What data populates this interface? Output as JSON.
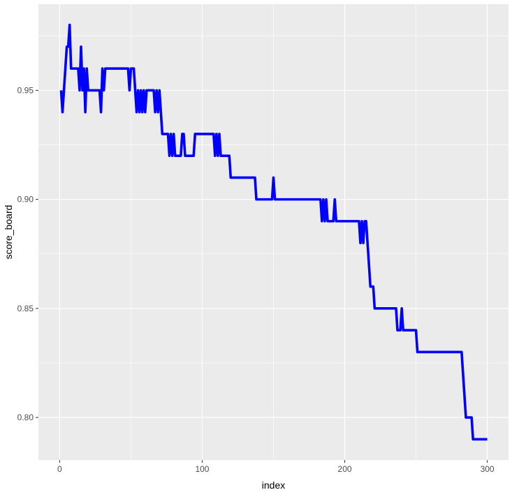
{
  "chart_data": {
    "type": "line",
    "xlabel": "index",
    "ylabel": "score_board",
    "xlim": [
      -14.9,
      314.9
    ],
    "ylim": [
      0.7805,
      0.9895
    ],
    "x_ticks": [
      0,
      100,
      200,
      300
    ],
    "x_tick_labels": [
      "0",
      "100",
      "200",
      "300"
    ],
    "y_ticks": [
      0.8,
      0.85,
      0.9,
      0.95
    ],
    "y_tick_labels": [
      "0.80",
      "0.85",
      "0.90",
      "0.95"
    ],
    "grid": true,
    "legend": "none",
    "series": [
      {
        "color": "#0000ff",
        "points": [
          [
            1,
            0.95
          ],
          [
            2,
            0.94
          ],
          [
            3,
            0.95
          ],
          [
            4,
            0.96
          ],
          [
            5,
            0.97
          ],
          [
            6,
            0.97
          ],
          [
            7,
            0.98
          ],
          [
            8,
            0.96
          ],
          [
            9,
            0.96
          ],
          [
            10,
            0.96
          ],
          [
            11,
            0.96
          ],
          [
            12,
            0.96
          ],
          [
            13,
            0.96
          ],
          [
            14,
            0.95
          ],
          [
            15,
            0.97
          ],
          [
            16,
            0.95
          ],
          [
            17,
            0.96
          ],
          [
            18,
            0.94
          ],
          [
            19,
            0.96
          ],
          [
            20,
            0.95
          ],
          [
            21,
            0.95
          ],
          [
            22,
            0.95
          ],
          [
            23,
            0.95
          ],
          [
            24,
            0.95
          ],
          [
            25,
            0.95
          ],
          [
            26,
            0.95
          ],
          [
            27,
            0.95
          ],
          [
            28,
            0.95
          ],
          [
            29,
            0.94
          ],
          [
            30,
            0.96
          ],
          [
            31,
            0.95
          ],
          [
            32,
            0.96
          ],
          [
            33,
            0.96
          ],
          [
            34,
            0.96
          ],
          [
            35,
            0.96
          ],
          [
            36,
            0.96
          ],
          [
            37,
            0.96
          ],
          [
            38,
            0.96
          ],
          [
            39,
            0.96
          ],
          [
            40,
            0.96
          ],
          [
            41,
            0.96
          ],
          [
            42,
            0.96
          ],
          [
            43,
            0.96
          ],
          [
            44,
            0.96
          ],
          [
            45,
            0.96
          ],
          [
            46,
            0.96
          ],
          [
            47,
            0.96
          ],
          [
            48,
            0.96
          ],
          [
            49,
            0.95
          ],
          [
            50,
            0.96
          ],
          [
            51,
            0.96
          ],
          [
            52,
            0.96
          ],
          [
            53,
            0.95
          ],
          [
            54,
            0.94
          ],
          [
            55,
            0.95
          ],
          [
            56,
            0.94
          ],
          [
            57,
            0.95
          ],
          [
            58,
            0.94
          ],
          [
            59,
            0.95
          ],
          [
            60,
            0.94
          ],
          [
            61,
            0.95
          ],
          [
            62,
            0.95
          ],
          [
            63,
            0.95
          ],
          [
            64,
            0.95
          ],
          [
            65,
            0.95
          ],
          [
            66,
            0.95
          ],
          [
            67,
            0.94
          ],
          [
            68,
            0.95
          ],
          [
            69,
            0.94
          ],
          [
            70,
            0.95
          ],
          [
            71,
            0.94
          ],
          [
            72,
            0.93
          ],
          [
            73,
            0.93
          ],
          [
            74,
            0.93
          ],
          [
            75,
            0.93
          ],
          [
            76,
            0.93
          ],
          [
            77,
            0.92
          ],
          [
            78,
            0.93
          ],
          [
            79,
            0.92
          ],
          [
            80,
            0.93
          ],
          [
            81,
            0.92
          ],
          [
            82,
            0.92
          ],
          [
            83,
            0.92
          ],
          [
            84,
            0.92
          ],
          [
            85,
            0.92
          ],
          [
            86,
            0.93
          ],
          [
            87,
            0.93
          ],
          [
            88,
            0.92
          ],
          [
            89,
            0.92
          ],
          [
            90,
            0.92
          ],
          [
            91,
            0.92
          ],
          [
            92,
            0.92
          ],
          [
            93,
            0.92
          ],
          [
            94,
            0.92
          ],
          [
            95,
            0.93
          ],
          [
            96,
            0.93
          ],
          [
            97,
            0.93
          ],
          [
            98,
            0.93
          ],
          [
            99,
            0.93
          ],
          [
            100,
            0.93
          ],
          [
            101,
            0.93
          ],
          [
            102,
            0.93
          ],
          [
            103,
            0.93
          ],
          [
            104,
            0.93
          ],
          [
            105,
            0.93
          ],
          [
            106,
            0.93
          ],
          [
            107,
            0.93
          ],
          [
            108,
            0.93
          ],
          [
            109,
            0.92
          ],
          [
            110,
            0.93
          ],
          [
            111,
            0.92
          ],
          [
            112,
            0.93
          ],
          [
            113,
            0.92
          ],
          [
            114,
            0.92
          ],
          [
            115,
            0.92
          ],
          [
            116,
            0.92
          ],
          [
            117,
            0.92
          ],
          [
            118,
            0.92
          ],
          [
            119,
            0.92
          ],
          [
            120,
            0.91
          ],
          [
            121,
            0.91
          ],
          [
            122,
            0.91
          ],
          [
            123,
            0.91
          ],
          [
            124,
            0.91
          ],
          [
            125,
            0.91
          ],
          [
            126,
            0.91
          ],
          [
            127,
            0.91
          ],
          [
            128,
            0.91
          ],
          [
            129,
            0.91
          ],
          [
            130,
            0.91
          ],
          [
            131,
            0.91
          ],
          [
            132,
            0.91
          ],
          [
            133,
            0.91
          ],
          [
            134,
            0.91
          ],
          [
            135,
            0.91
          ],
          [
            136,
            0.91
          ],
          [
            137,
            0.91
          ],
          [
            138,
            0.9
          ],
          [
            139,
            0.9
          ],
          [
            140,
            0.9
          ],
          [
            141,
            0.9
          ],
          [
            142,
            0.9
          ],
          [
            143,
            0.9
          ],
          [
            144,
            0.9
          ],
          [
            145,
            0.9
          ],
          [
            146,
            0.9
          ],
          [
            147,
            0.9
          ],
          [
            148,
            0.9
          ],
          [
            149,
            0.9
          ],
          [
            150,
            0.91
          ],
          [
            151,
            0.9
          ],
          [
            152,
            0.9
          ],
          [
            153,
            0.9
          ],
          [
            154,
            0.9
          ],
          [
            155,
            0.9
          ],
          [
            156,
            0.9
          ],
          [
            157,
            0.9
          ],
          [
            158,
            0.9
          ],
          [
            159,
            0.9
          ],
          [
            160,
            0.9
          ],
          [
            161,
            0.9
          ],
          [
            162,
            0.9
          ],
          [
            163,
            0.9
          ],
          [
            164,
            0.9
          ],
          [
            165,
            0.9
          ],
          [
            166,
            0.9
          ],
          [
            167,
            0.9
          ],
          [
            168,
            0.9
          ],
          [
            169,
            0.9
          ],
          [
            170,
            0.9
          ],
          [
            171,
            0.9
          ],
          [
            172,
            0.9
          ],
          [
            173,
            0.9
          ],
          [
            174,
            0.9
          ],
          [
            175,
            0.9
          ],
          [
            176,
            0.9
          ],
          [
            177,
            0.9
          ],
          [
            178,
            0.9
          ],
          [
            179,
            0.9
          ],
          [
            180,
            0.9
          ],
          [
            181,
            0.9
          ],
          [
            182,
            0.9
          ],
          [
            183,
            0.9
          ],
          [
            184,
            0.89
          ],
          [
            185,
            0.9
          ],
          [
            186,
            0.89
          ],
          [
            187,
            0.9
          ],
          [
            188,
            0.89
          ],
          [
            189,
            0.89
          ],
          [
            190,
            0.89
          ],
          [
            191,
            0.89
          ],
          [
            192,
            0.89
          ],
          [
            193,
            0.9
          ],
          [
            194,
            0.89
          ],
          [
            195,
            0.89
          ],
          [
            196,
            0.89
          ],
          [
            197,
            0.89
          ],
          [
            198,
            0.89
          ],
          [
            199,
            0.89
          ],
          [
            200,
            0.89
          ],
          [
            201,
            0.89
          ],
          [
            202,
            0.89
          ],
          [
            203,
            0.89
          ],
          [
            204,
            0.89
          ],
          [
            205,
            0.89
          ],
          [
            206,
            0.89
          ],
          [
            207,
            0.89
          ],
          [
            208,
            0.89
          ],
          [
            209,
            0.89
          ],
          [
            210,
            0.89
          ],
          [
            211,
            0.88
          ],
          [
            212,
            0.89
          ],
          [
            213,
            0.88
          ],
          [
            214,
            0.89
          ],
          [
            215,
            0.89
          ],
          [
            216,
            0.88
          ],
          [
            217,
            0.87
          ],
          [
            218,
            0.86
          ],
          [
            219,
            0.86
          ],
          [
            220,
            0.86
          ],
          [
            221,
            0.85
          ],
          [
            222,
            0.85
          ],
          [
            223,
            0.85
          ],
          [
            224,
            0.85
          ],
          [
            225,
            0.85
          ],
          [
            226,
            0.85
          ],
          [
            227,
            0.85
          ],
          [
            228,
            0.85
          ],
          [
            229,
            0.85
          ],
          [
            230,
            0.85
          ],
          [
            231,
            0.85
          ],
          [
            232,
            0.85
          ],
          [
            233,
            0.85
          ],
          [
            234,
            0.85
          ],
          [
            235,
            0.85
          ],
          [
            236,
            0.85
          ],
          [
            237,
            0.84
          ],
          [
            238,
            0.84
          ],
          [
            239,
            0.84
          ],
          [
            240,
            0.85
          ],
          [
            241,
            0.84
          ],
          [
            242,
            0.84
          ],
          [
            243,
            0.84
          ],
          [
            244,
            0.84
          ],
          [
            245,
            0.84
          ],
          [
            246,
            0.84
          ],
          [
            247,
            0.84
          ],
          [
            248,
            0.84
          ],
          [
            249,
            0.84
          ],
          [
            250,
            0.84
          ],
          [
            251,
            0.83
          ],
          [
            252,
            0.83
          ],
          [
            253,
            0.83
          ],
          [
            254,
            0.83
          ],
          [
            255,
            0.83
          ],
          [
            256,
            0.83
          ],
          [
            257,
            0.83
          ],
          [
            258,
            0.83
          ],
          [
            259,
            0.83
          ],
          [
            260,
            0.83
          ],
          [
            261,
            0.83
          ],
          [
            262,
            0.83
          ],
          [
            263,
            0.83
          ],
          [
            264,
            0.83
          ],
          [
            265,
            0.83
          ],
          [
            266,
            0.83
          ],
          [
            267,
            0.83
          ],
          [
            268,
            0.83
          ],
          [
            269,
            0.83
          ],
          [
            270,
            0.83
          ],
          [
            271,
            0.83
          ],
          [
            272,
            0.83
          ],
          [
            273,
            0.83
          ],
          [
            274,
            0.83
          ],
          [
            275,
            0.83
          ],
          [
            276,
            0.83
          ],
          [
            277,
            0.83
          ],
          [
            278,
            0.83
          ],
          [
            279,
            0.83
          ],
          [
            280,
            0.83
          ],
          [
            281,
            0.83
          ],
          [
            282,
            0.83
          ],
          [
            283,
            0.82
          ],
          [
            284,
            0.81
          ],
          [
            285,
            0.8
          ],
          [
            286,
            0.8
          ],
          [
            287,
            0.8
          ],
          [
            288,
            0.8
          ],
          [
            289,
            0.8
          ],
          [
            290,
            0.79
          ],
          [
            291,
            0.79
          ],
          [
            292,
            0.79
          ],
          [
            293,
            0.79
          ],
          [
            294,
            0.79
          ],
          [
            295,
            0.79
          ],
          [
            296,
            0.79
          ],
          [
            297,
            0.79
          ],
          [
            298,
            0.79
          ],
          [
            299,
            0.79
          ],
          [
            300,
            0.79
          ]
        ]
      }
    ],
    "colors": {
      "panel_background": "#ebebeb",
      "grid_major": "#ffffff",
      "line": "#0000ff"
    }
  }
}
